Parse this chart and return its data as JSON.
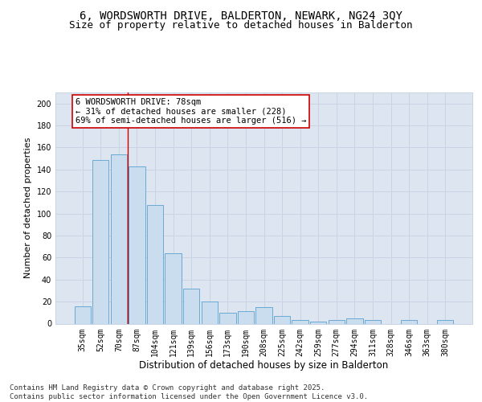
{
  "title_line1": "6, WORDSWORTH DRIVE, BALDERTON, NEWARK, NG24 3QY",
  "title_line2": "Size of property relative to detached houses in Balderton",
  "xlabel": "Distribution of detached houses by size in Balderton",
  "ylabel": "Number of detached properties",
  "categories": [
    "35sqm",
    "52sqm",
    "70sqm",
    "87sqm",
    "104sqm",
    "121sqm",
    "139sqm",
    "156sqm",
    "173sqm",
    "190sqm",
    "208sqm",
    "225sqm",
    "242sqm",
    "259sqm",
    "277sqm",
    "294sqm",
    "311sqm",
    "328sqm",
    "346sqm",
    "363sqm",
    "380sqm"
  ],
  "values": [
    16,
    149,
    154,
    143,
    108,
    64,
    32,
    20,
    10,
    11,
    15,
    7,
    3,
    2,
    3,
    5,
    3,
    0,
    3,
    0,
    3
  ],
  "bar_color": "#c9ddef",
  "bar_edge_color": "#6aaad4",
  "bar_linewidth": 0.7,
  "grid_color": "#c8d4e4",
  "bg_color": "#dde6f0",
  "annotation_line1": "6 WORDSWORTH DRIVE: 78sqm",
  "annotation_line2": "← 31% of detached houses are smaller (228)",
  "annotation_line3": "69% of semi-detached houses are larger (516) →",
  "vline_x": 2.5,
  "vline_color": "#cc0000",
  "ylim": [
    0,
    210
  ],
  "yticks": [
    0,
    20,
    40,
    60,
    80,
    100,
    120,
    140,
    160,
    180,
    200
  ],
  "footnote": "Contains HM Land Registry data © Crown copyright and database right 2025.\nContains public sector information licensed under the Open Government Licence v3.0.",
  "footnote_fontsize": 6.5,
  "title_fontsize1": 10,
  "title_fontsize2": 9,
  "xlabel_fontsize": 8.5,
  "ylabel_fontsize": 8,
  "tick_fontsize": 7,
  "annot_fontsize": 7.5
}
